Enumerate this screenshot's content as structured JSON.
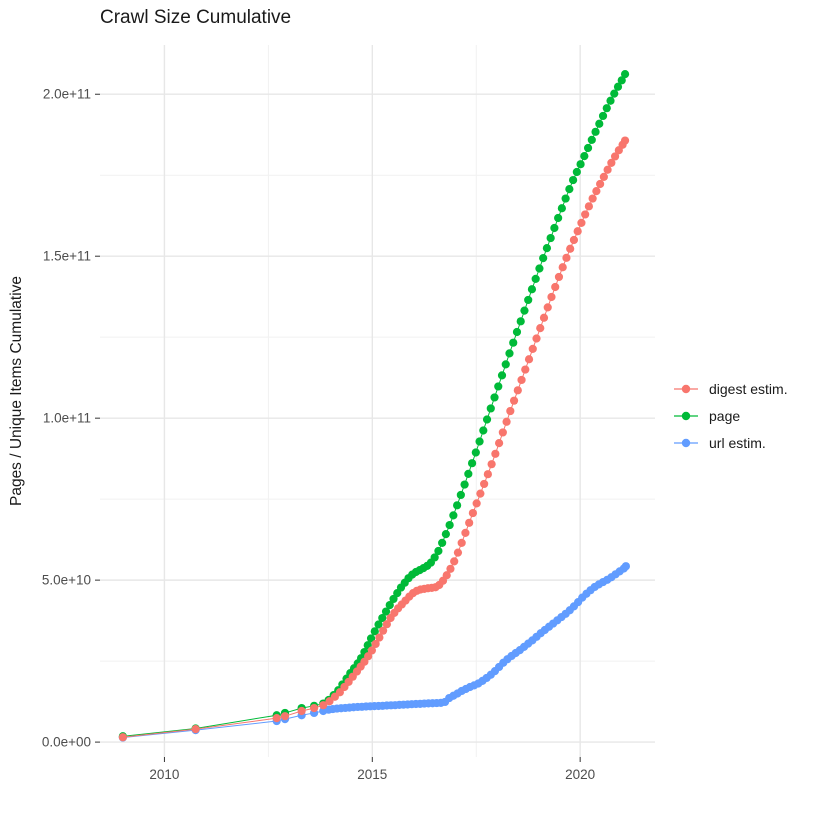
{
  "title": "Crawl Size Cumulative",
  "legend": {
    "items": [
      {
        "label": "digest estim.",
        "color": "#F8766D"
      },
      {
        "label": "page",
        "color": "#00BA38"
      },
      {
        "label": "url estim.",
        "color": "#619CFF"
      }
    ]
  },
  "chart_data": {
    "type": "scatter",
    "title": "Crawl Size Cumulative",
    "xlabel": "",
    "ylabel": "Pages / Unique Items Cumulative",
    "grid": true,
    "legend_position": "right",
    "value_unit": "billions (1e9) of pages / unique items",
    "x_range": [
      2008.45,
      2021.8
    ],
    "y_range": [
      -4.6,
      215.2
    ],
    "x_ticks": [
      {
        "label": "2010",
        "value": 2010
      },
      {
        "label": "2015",
        "value": 2015
      },
      {
        "label": "2020",
        "value": 2020
      }
    ],
    "y_ticks": [
      {
        "label": "0.0e+00",
        "value": 0
      },
      {
        "label": "5.0e+10",
        "value": 50
      },
      {
        "label": "1.0e+11",
        "value": 100
      },
      {
        "label": "1.5e+11",
        "value": 150
      },
      {
        "label": "2.0e+11",
        "value": 200
      }
    ],
    "x_minor": [
      2012.5,
      2017.5
    ],
    "y_minor": [
      25,
      75,
      125,
      175
    ],
    "colors": {
      "major_grid": "#e7e7e7",
      "minor_grid": "#f1f1f1",
      "tick": "#333333",
      "tick_label": "#4d4d4d"
    },
    "series": [
      {
        "name": "url estim.",
        "color": "#619CFF",
        "points": [
          [
            2009.0,
            1.4
          ],
          [
            2010.75,
            3.7
          ],
          [
            2012.7,
            6.5
          ],
          [
            2012.9,
            7.1
          ],
          [
            2013.3,
            8.3
          ],
          [
            2013.6,
            9.0
          ],
          [
            2013.82,
            9.6
          ],
          [
            2013.95,
            10.0
          ],
          [
            2014.05,
            10.2
          ],
          [
            2014.15,
            10.35
          ],
          [
            2014.25,
            10.45
          ],
          [
            2014.35,
            10.55
          ],
          [
            2014.45,
            10.65
          ],
          [
            2014.55,
            10.75
          ],
          [
            2014.65,
            10.85
          ],
          [
            2014.75,
            10.9
          ],
          [
            2014.85,
            11.0
          ],
          [
            2014.95,
            11.05
          ],
          [
            2015.05,
            11.1
          ],
          [
            2015.15,
            11.15
          ],
          [
            2015.25,
            11.2
          ],
          [
            2015.35,
            11.3
          ],
          [
            2015.45,
            11.35
          ],
          [
            2015.55,
            11.4
          ],
          [
            2015.65,
            11.5
          ],
          [
            2015.75,
            11.55
          ],
          [
            2015.85,
            11.6
          ],
          [
            2015.95,
            11.7
          ],
          [
            2016.05,
            11.75
          ],
          [
            2016.15,
            11.8
          ],
          [
            2016.25,
            11.9
          ],
          [
            2016.35,
            11.95
          ],
          [
            2016.45,
            12.0
          ],
          [
            2016.55,
            12.05
          ],
          [
            2016.65,
            12.1
          ],
          [
            2016.75,
            12.4
          ],
          [
            2016.85,
            13.6
          ],
          [
            2016.95,
            14.3
          ],
          [
            2017.05,
            15.0
          ],
          [
            2017.15,
            15.8
          ],
          [
            2017.25,
            16.4
          ],
          [
            2017.35,
            17.0
          ],
          [
            2017.45,
            17.5
          ],
          [
            2017.55,
            18.1
          ],
          [
            2017.65,
            18.9
          ],
          [
            2017.75,
            19.8
          ],
          [
            2017.85,
            20.8
          ],
          [
            2017.95,
            21.9
          ],
          [
            2018.05,
            23.2
          ],
          [
            2018.15,
            24.5
          ],
          [
            2018.25,
            25.6
          ],
          [
            2018.35,
            26.6
          ],
          [
            2018.45,
            27.5
          ],
          [
            2018.55,
            28.4
          ],
          [
            2018.65,
            29.4
          ],
          [
            2018.75,
            30.4
          ],
          [
            2018.85,
            31.4
          ],
          [
            2018.95,
            32.5
          ],
          [
            2019.05,
            33.6
          ],
          [
            2019.15,
            34.6
          ],
          [
            2019.25,
            35.6
          ],
          [
            2019.35,
            36.6
          ],
          [
            2019.45,
            37.6
          ],
          [
            2019.55,
            38.6
          ],
          [
            2019.65,
            39.6
          ],
          [
            2019.75,
            40.7
          ],
          [
            2019.85,
            41.9
          ],
          [
            2019.95,
            43.2
          ],
          [
            2020.05,
            44.6
          ],
          [
            2020.15,
            45.8
          ],
          [
            2020.25,
            46.9
          ],
          [
            2020.35,
            47.9
          ],
          [
            2020.45,
            48.7
          ],
          [
            2020.55,
            49.4
          ],
          [
            2020.65,
            50.1
          ],
          [
            2020.75,
            50.9
          ],
          [
            2020.85,
            51.8
          ],
          [
            2020.95,
            52.7
          ],
          [
            2021.05,
            53.6
          ],
          [
            2021.1,
            54.3
          ]
        ]
      },
      {
        "name": "page",
        "color": "#00BA38",
        "points": [
          [
            2009.0,
            1.8
          ],
          [
            2010.75,
            4.2
          ],
          [
            2012.7,
            8.3
          ],
          [
            2012.9,
            9.0
          ],
          [
            2013.3,
            10.5
          ],
          [
            2013.6,
            11.2
          ],
          [
            2013.82,
            11.9
          ],
          [
            2013.95,
            13.0
          ],
          [
            2014.07,
            14.5
          ],
          [
            2014.18,
            16.0
          ],
          [
            2014.28,
            17.8
          ],
          [
            2014.38,
            19.6
          ],
          [
            2014.47,
            21.3
          ],
          [
            2014.56,
            22.8
          ],
          [
            2014.65,
            24.3
          ],
          [
            2014.73,
            25.9
          ],
          [
            2014.81,
            27.8
          ],
          [
            2014.89,
            29.9
          ],
          [
            2014.97,
            32.0
          ],
          [
            2015.06,
            34.2
          ],
          [
            2015.15,
            36.3
          ],
          [
            2015.24,
            38.3
          ],
          [
            2015.33,
            40.3
          ],
          [
            2015.42,
            42.3
          ],
          [
            2015.51,
            44.2
          ],
          [
            2015.6,
            46.0
          ],
          [
            2015.69,
            47.7
          ],
          [
            2015.78,
            49.2
          ],
          [
            2015.87,
            50.6
          ],
          [
            2015.96,
            51.7
          ],
          [
            2016.05,
            52.5
          ],
          [
            2016.14,
            53.1
          ],
          [
            2016.23,
            53.7
          ],
          [
            2016.32,
            54.4
          ],
          [
            2016.41,
            55.4
          ],
          [
            2016.5,
            57.0
          ],
          [
            2016.59,
            59.0
          ],
          [
            2016.68,
            61.5
          ],
          [
            2016.77,
            64.2
          ],
          [
            2016.86,
            67.0
          ],
          [
            2016.95,
            70.0
          ],
          [
            2017.04,
            73.1
          ],
          [
            2017.13,
            76.3
          ],
          [
            2017.22,
            79.5
          ],
          [
            2017.31,
            82.8
          ],
          [
            2017.4,
            86.1
          ],
          [
            2017.49,
            89.4
          ],
          [
            2017.58,
            92.8
          ],
          [
            2017.67,
            96.2
          ],
          [
            2017.76,
            99.6
          ],
          [
            2017.85,
            103.0
          ],
          [
            2017.94,
            106.4
          ],
          [
            2018.03,
            109.8
          ],
          [
            2018.12,
            113.2
          ],
          [
            2018.21,
            116.6
          ],
          [
            2018.3,
            120.0
          ],
          [
            2018.39,
            123.3
          ],
          [
            2018.48,
            126.6
          ],
          [
            2018.57,
            129.9
          ],
          [
            2018.66,
            133.2
          ],
          [
            2018.75,
            136.5
          ],
          [
            2018.84,
            139.8
          ],
          [
            2018.93,
            143.0
          ],
          [
            2019.02,
            146.2
          ],
          [
            2019.11,
            149.4
          ],
          [
            2019.2,
            152.5
          ],
          [
            2019.29,
            155.6
          ],
          [
            2019.38,
            158.7
          ],
          [
            2019.47,
            161.8
          ],
          [
            2019.56,
            164.8
          ],
          [
            2019.65,
            167.8
          ],
          [
            2019.74,
            170.7
          ],
          [
            2019.83,
            173.5
          ],
          [
            2019.92,
            176.0
          ],
          [
            2020.01,
            178.4
          ],
          [
            2020.1,
            180.9
          ],
          [
            2020.19,
            183.4
          ],
          [
            2020.28,
            185.9
          ],
          [
            2020.37,
            188.4
          ],
          [
            2020.46,
            190.9
          ],
          [
            2020.55,
            193.3
          ],
          [
            2020.64,
            195.7
          ],
          [
            2020.73,
            198.0
          ],
          [
            2020.82,
            200.2
          ],
          [
            2020.91,
            202.3
          ],
          [
            2021.0,
            204.3
          ],
          [
            2021.08,
            206.2
          ]
        ]
      },
      {
        "name": "digest estim.",
        "color": "#F8766D",
        "points": [
          [
            2009.0,
            1.5
          ],
          [
            2010.75,
            4.0
          ],
          [
            2012.7,
            7.4
          ],
          [
            2012.9,
            8.0
          ],
          [
            2013.3,
            9.6
          ],
          [
            2013.6,
            10.5
          ],
          [
            2013.82,
            11.4
          ],
          [
            2013.97,
            12.6
          ],
          [
            2014.1,
            14.0
          ],
          [
            2014.22,
            15.4
          ],
          [
            2014.33,
            17.0
          ],
          [
            2014.43,
            18.6
          ],
          [
            2014.53,
            20.2
          ],
          [
            2014.63,
            21.8
          ],
          [
            2014.72,
            23.3
          ],
          [
            2014.81,
            24.8
          ],
          [
            2014.9,
            26.5
          ],
          [
            2014.99,
            28.3
          ],
          [
            2015.08,
            30.3
          ],
          [
            2015.17,
            32.3
          ],
          [
            2015.26,
            34.4
          ],
          [
            2015.35,
            36.4
          ],
          [
            2015.44,
            38.3
          ],
          [
            2015.53,
            39.9
          ],
          [
            2015.62,
            41.3
          ],
          [
            2015.71,
            42.5
          ],
          [
            2015.8,
            43.7
          ],
          [
            2015.89,
            44.9
          ],
          [
            2015.98,
            46.0
          ],
          [
            2016.07,
            46.7
          ],
          [
            2016.16,
            47.1
          ],
          [
            2016.25,
            47.3
          ],
          [
            2016.34,
            47.5
          ],
          [
            2016.43,
            47.6
          ],
          [
            2016.52,
            47.8
          ],
          [
            2016.61,
            48.5
          ],
          [
            2016.7,
            49.8
          ],
          [
            2016.79,
            51.5
          ],
          [
            2016.88,
            53.5
          ],
          [
            2016.97,
            55.8
          ],
          [
            2017.06,
            58.5
          ],
          [
            2017.15,
            61.5
          ],
          [
            2017.24,
            64.6
          ],
          [
            2017.33,
            67.7
          ],
          [
            2017.42,
            70.7
          ],
          [
            2017.51,
            73.7
          ],
          [
            2017.6,
            76.7
          ],
          [
            2017.69,
            79.7
          ],
          [
            2017.78,
            82.7
          ],
          [
            2017.87,
            85.8
          ],
          [
            2017.96,
            89.0
          ],
          [
            2018.05,
            92.3
          ],
          [
            2018.14,
            95.6
          ],
          [
            2018.23,
            98.9
          ],
          [
            2018.32,
            102.2
          ],
          [
            2018.41,
            105.4
          ],
          [
            2018.5,
            108.6
          ],
          [
            2018.59,
            111.8
          ],
          [
            2018.68,
            115.0
          ],
          [
            2018.77,
            118.2
          ],
          [
            2018.86,
            121.4
          ],
          [
            2018.95,
            124.6
          ],
          [
            2019.04,
            127.8
          ],
          [
            2019.13,
            131.0
          ],
          [
            2019.22,
            134.2
          ],
          [
            2019.31,
            137.4
          ],
          [
            2019.4,
            140.5
          ],
          [
            2019.49,
            143.6
          ],
          [
            2019.58,
            146.6
          ],
          [
            2019.67,
            149.5
          ],
          [
            2019.76,
            152.3
          ],
          [
            2019.85,
            155.0
          ],
          [
            2019.94,
            157.7
          ],
          [
            2020.03,
            160.3
          ],
          [
            2020.12,
            162.9
          ],
          [
            2020.21,
            165.4
          ],
          [
            2020.3,
            167.8
          ],
          [
            2020.39,
            170.1
          ],
          [
            2020.48,
            172.3
          ],
          [
            2020.57,
            174.5
          ],
          [
            2020.66,
            176.7
          ],
          [
            2020.75,
            178.8
          ],
          [
            2020.84,
            180.8
          ],
          [
            2020.93,
            182.7
          ],
          [
            2021.02,
            184.4
          ],
          [
            2021.08,
            185.7
          ]
        ]
      }
    ]
  }
}
